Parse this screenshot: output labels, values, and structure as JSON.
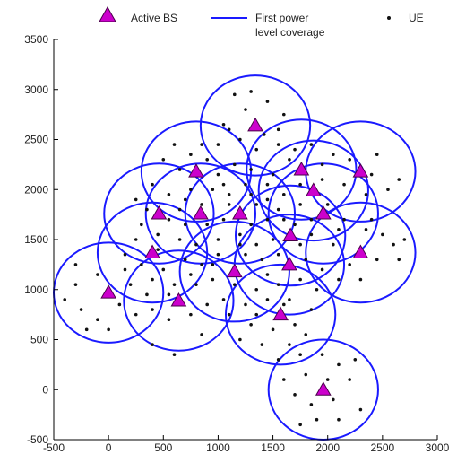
{
  "chart_data": {
    "type": "scatter",
    "xlim": [
      -500,
      3000
    ],
    "ylim": [
      -500,
      3500
    ],
    "x_ticks": [
      -500,
      0,
      500,
      1000,
      1500,
      2000,
      2500,
      3000
    ],
    "y_ticks": [
      -500,
      0,
      500,
      1000,
      1500,
      2000,
      2500,
      3000,
      3500
    ],
    "x_tick_labels": [
      "-500",
      "0",
      "500",
      "1000",
      "1500",
      "2000",
      "2500",
      "3000"
    ],
    "y_tick_labels": [
      "-500",
      "0",
      "500",
      "1000",
      "1500",
      "2000",
      "2500",
      "3000",
      "3500"
    ],
    "grid": false,
    "legend": {
      "placement": "top",
      "entries": [
        {
          "label": "Active BS",
          "marker": "triangle",
          "color": "#cc00cc"
        },
        {
          "label_line1": "First power",
          "label_line2": "level coverage",
          "marker": "line",
          "color": "#1a1aff"
        },
        {
          "label": "UE",
          "marker": "dot",
          "color": "#111111"
        }
      ]
    },
    "coverage_radius": 500,
    "colors": {
      "bs": "#cc00cc",
      "circle": "#1a1aff",
      "ue": "#111111"
    },
    "base_stations": [
      {
        "x": 1340,
        "y": 2640
      },
      {
        "x": 800,
        "y": 2180
      },
      {
        "x": 1760,
        "y": 2200
      },
      {
        "x": 2300,
        "y": 2180
      },
      {
        "x": 1870,
        "y": 1990
      },
      {
        "x": 460,
        "y": 1760
      },
      {
        "x": 840,
        "y": 1760
      },
      {
        "x": 1200,
        "y": 1760
      },
      {
        "x": 1960,
        "y": 1760
      },
      {
        "x": 1660,
        "y": 1540
      },
      {
        "x": 400,
        "y": 1370
      },
      {
        "x": 2300,
        "y": 1370
      },
      {
        "x": 1150,
        "y": 1180
      },
      {
        "x": 1650,
        "y": 1250
      },
      {
        "x": 0,
        "y": 970
      },
      {
        "x": 640,
        "y": 890
      },
      {
        "x": 1570,
        "y": 750
      },
      {
        "x": 1960,
        "y": 0
      }
    ],
    "ue": [
      [
        1150,
        2950
      ],
      [
        1300,
        2980
      ],
      [
        1450,
        2880
      ],
      [
        1250,
        2800
      ],
      [
        1600,
        2750
      ],
      [
        1050,
        2650
      ],
      [
        1420,
        2550
      ],
      [
        1200,
        2500
      ],
      [
        1550,
        2450
      ],
      [
        1350,
        2400
      ],
      [
        1000,
        2450
      ],
      [
        600,
        2450
      ],
      [
        750,
        2350
      ],
      [
        500,
        2300
      ],
      [
        900,
        2300
      ],
      [
        650,
        2200
      ],
      [
        1000,
        2150
      ],
      [
        1150,
        2250
      ],
      [
        1300,
        2200
      ],
      [
        1500,
        2150
      ],
      [
        1650,
        2300
      ],
      [
        1850,
        2450
      ],
      [
        2050,
        2350
      ],
      [
        2200,
        2300
      ],
      [
        2450,
        2350
      ],
      [
        2400,
        2150
      ],
      [
        2550,
        2000
      ],
      [
        2150,
        2050
      ],
      [
        1950,
        2100
      ],
      [
        1750,
        2050
      ],
      [
        1600,
        1950
      ],
      [
        1450,
        1900
      ],
      [
        1300,
        1950
      ],
      [
        1100,
        1950
      ],
      [
        950,
        2000
      ],
      [
        750,
        2000
      ],
      [
        550,
        1950
      ],
      [
        400,
        2050
      ],
      [
        250,
        1900
      ],
      [
        350,
        1800
      ],
      [
        550,
        1700
      ],
      [
        700,
        1650
      ],
      [
        900,
        1650
      ],
      [
        1050,
        1700
      ],
      [
        1300,
        1650
      ],
      [
        1450,
        1700
      ],
      [
        1550,
        1800
      ],
      [
        1750,
        1850
      ],
      [
        2000,
        1850
      ],
      [
        2150,
        1700
      ],
      [
        2350,
        1600
      ],
      [
        2500,
        1550
      ],
      [
        2600,
        1450
      ],
      [
        2450,
        1300
      ],
      [
        2200,
        1250
      ],
      [
        2050,
        1450
      ],
      [
        1850,
        1550
      ],
      [
        1700,
        1650
      ],
      [
        1500,
        1500
      ],
      [
        1350,
        1450
      ],
      [
        1200,
        1550
      ],
      [
        1000,
        1500
      ],
      [
        800,
        1450
      ],
      [
        650,
        1500
      ],
      [
        450,
        1550
      ],
      [
        250,
        1500
      ],
      [
        150,
        1350
      ],
      [
        300,
        1250
      ],
      [
        500,
        1200
      ],
      [
        700,
        1300
      ],
      [
        850,
        1250
      ],
      [
        1000,
        1350
      ],
      [
        1250,
        1350
      ],
      [
        1400,
        1300
      ],
      [
        1550,
        1350
      ],
      [
        1800,
        1300
      ],
      [
        1950,
        1200
      ],
      [
        1750,
        1100
      ],
      [
        1550,
        1050
      ],
      [
        1350,
        1000
      ],
      [
        1150,
        1050
      ],
      [
        950,
        1100
      ],
      [
        800,
        1050
      ],
      [
        600,
        1050
      ],
      [
        400,
        1100
      ],
      [
        200,
        1050
      ],
      [
        -100,
        1150
      ],
      [
        -300,
        1050
      ],
      [
        -400,
        900
      ],
      [
        -250,
        800
      ],
      [
        -100,
        700
      ],
      [
        100,
        850
      ],
      [
        250,
        750
      ],
      [
        400,
        800
      ],
      [
        550,
        700
      ],
      [
        750,
        750
      ],
      [
        900,
        850
      ],
      [
        1050,
        900
      ],
      [
        1250,
        850
      ],
      [
        1450,
        900
      ],
      [
        1650,
        900
      ],
      [
        1850,
        800
      ],
      [
        1700,
        650
      ],
      [
        1500,
        600
      ],
      [
        1300,
        650
      ],
      [
        1200,
        500
      ],
      [
        1400,
        450
      ],
      [
        1650,
        450
      ],
      [
        1800,
        550
      ],
      [
        1750,
        350
      ],
      [
        1550,
        300
      ],
      [
        1950,
        350
      ],
      [
        2100,
        250
      ],
      [
        2250,
        300
      ],
      [
        2200,
        100
      ],
      [
        2050,
        -100
      ],
      [
        1850,
        -150
      ],
      [
        1700,
        -50
      ],
      [
        1600,
        100
      ],
      [
        1800,
        150
      ],
      [
        2000,
        100
      ],
      [
        1900,
        -300
      ],
      [
        2100,
        -300
      ],
      [
        2300,
        -200
      ],
      [
        1750,
        -350
      ],
      [
        600,
        350
      ],
      [
        400,
        450
      ],
      [
        850,
        550
      ],
      [
        -200,
        600
      ],
      [
        1100,
        1850
      ],
      [
        1250,
        2050
      ],
      [
        1450,
        2050
      ],
      [
        1700,
        2400
      ],
      [
        1950,
        2250
      ],
      [
        2350,
        1950
      ],
      [
        2650,
        2100
      ],
      [
        2400,
        1700
      ],
      [
        2650,
        1300
      ],
      [
        2700,
        1500
      ],
      [
        300,
        1650
      ],
      [
        150,
        1200
      ],
      [
        -300,
        1250
      ],
      [
        0,
        600
      ],
      [
        700,
        1900
      ],
      [
        850,
        2450
      ],
      [
        1100,
        2600
      ],
      [
        1550,
        2600
      ],
      [
        1350,
        1850
      ],
      [
        1600,
        1700
      ],
      [
        1850,
        1700
      ],
      [
        2100,
        1600
      ],
      [
        950,
        1250
      ],
      [
        750,
        1150
      ],
      [
        550,
        950
      ],
      [
        350,
        950
      ],
      [
        1100,
        750
      ],
      [
        1350,
        750
      ],
      [
        1600,
        850
      ],
      [
        1900,
        1000
      ],
      [
        2100,
        1100
      ],
      [
        2300,
        1100
      ],
      [
        1750,
        1450
      ],
      [
        1450,
        1150
      ],
      [
        1050,
        2050
      ],
      [
        1200,
        1450
      ],
      [
        850,
        1850
      ],
      [
        650,
        1800
      ],
      [
        450,
        1400
      ]
    ]
  }
}
